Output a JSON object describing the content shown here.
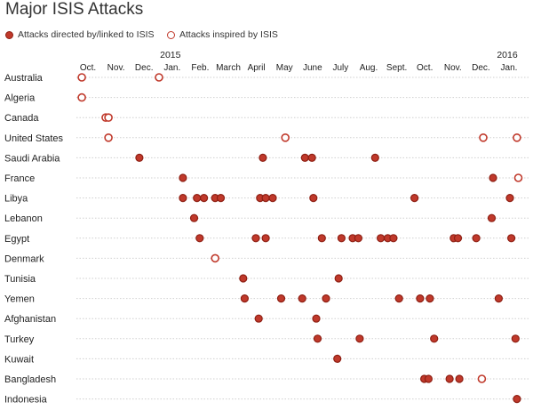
{
  "chart_data": {
    "type": "scatter",
    "title": "Major ISIS Attacks",
    "legend": [
      {
        "key": "directed",
        "label": "Attacks directed by/linked to ISIS",
        "color": "#c0392b",
        "stroke": "#8e1f13"
      },
      {
        "key": "inspired",
        "label": "Attacks inspired by ISIS",
        "color": "#ffffff",
        "stroke": "#c0392b"
      }
    ],
    "year_labels": [
      {
        "label": "2015",
        "month": 3
      },
      {
        "label": "2016",
        "month": 15
      }
    ],
    "months": [
      "Oct.",
      "Nov.",
      "Dec.",
      "Jan.",
      "Feb.",
      "March",
      "April",
      "May",
      "June",
      "July",
      "Aug.",
      "Sept.",
      "Oct.",
      "Nov.",
      "Dec.",
      "Jan."
    ],
    "countries": [
      "Australia",
      "Algeria",
      "Canada",
      "United States",
      "Saudi Arabia",
      "France",
      "Libya",
      "Lebanon",
      "Egypt",
      "Denmark",
      "Tunisia",
      "Yemen",
      "Afghanistan",
      "Turkey",
      "Kuwait",
      "Bangladesh",
      "Indonesia"
    ],
    "series": [
      {
        "key": "directed",
        "points": [
          {
            "country": "Saudi Arabia",
            "m": 1.8
          },
          {
            "country": "Saudi Arabia",
            "m": 6.2
          },
          {
            "country": "Saudi Arabia",
            "m": 7.7
          },
          {
            "country": "Saudi Arabia",
            "m": 7.95
          },
          {
            "country": "Saudi Arabia",
            "m": 10.2
          },
          {
            "country": "France",
            "m": 3.35
          },
          {
            "country": "France",
            "m": 14.4
          },
          {
            "country": "Libya",
            "m": 3.35
          },
          {
            "country": "Libya",
            "m": 3.85
          },
          {
            "country": "Libya",
            "m": 4.1
          },
          {
            "country": "Libya",
            "m": 4.5
          },
          {
            "country": "Libya",
            "m": 4.7
          },
          {
            "country": "Libya",
            "m": 6.1
          },
          {
            "country": "Libya",
            "m": 6.3
          },
          {
            "country": "Libya",
            "m": 6.55
          },
          {
            "country": "Libya",
            "m": 8.0
          },
          {
            "country": "Libya",
            "m": 11.6
          },
          {
            "country": "Libya",
            "m": 15.0
          },
          {
            "country": "Lebanon",
            "m": 3.75
          },
          {
            "country": "Lebanon",
            "m": 14.35
          },
          {
            "country": "Egypt",
            "m": 3.95
          },
          {
            "country": "Egypt",
            "m": 5.95
          },
          {
            "country": "Egypt",
            "m": 6.3
          },
          {
            "country": "Egypt",
            "m": 8.3
          },
          {
            "country": "Egypt",
            "m": 9.0
          },
          {
            "country": "Egypt",
            "m": 9.4
          },
          {
            "country": "Egypt",
            "m": 9.6
          },
          {
            "country": "Egypt",
            "m": 10.4
          },
          {
            "country": "Egypt",
            "m": 10.65
          },
          {
            "country": "Egypt",
            "m": 10.85
          },
          {
            "country": "Egypt",
            "m": 13.0
          },
          {
            "country": "Egypt",
            "m": 13.15
          },
          {
            "country": "Egypt",
            "m": 13.8
          },
          {
            "country": "Egypt",
            "m": 15.05
          },
          {
            "country": "Tunisia",
            "m": 5.5
          },
          {
            "country": "Tunisia",
            "m": 8.9
          },
          {
            "country": "Yemen",
            "m": 5.55
          },
          {
            "country": "Yemen",
            "m": 6.85
          },
          {
            "country": "Yemen",
            "m": 7.6
          },
          {
            "country": "Yemen",
            "m": 8.45
          },
          {
            "country": "Yemen",
            "m": 11.05
          },
          {
            "country": "Yemen",
            "m": 11.8
          },
          {
            "country": "Yemen",
            "m": 12.15
          },
          {
            "country": "Yemen",
            "m": 14.6
          },
          {
            "country": "Afghanistan",
            "m": 6.05
          },
          {
            "country": "Afghanistan",
            "m": 8.1
          },
          {
            "country": "Turkey",
            "m": 8.15
          },
          {
            "country": "Turkey",
            "m": 9.65
          },
          {
            "country": "Turkey",
            "m": 12.3
          },
          {
            "country": "Turkey",
            "m": 15.2
          },
          {
            "country": "Kuwait",
            "m": 8.85
          },
          {
            "country": "Bangladesh",
            "m": 11.95
          },
          {
            "country": "Bangladesh",
            "m": 12.1
          },
          {
            "country": "Bangladesh",
            "m": 12.85
          },
          {
            "country": "Bangladesh",
            "m": 13.2
          },
          {
            "country": "Indonesia",
            "m": 15.25
          }
        ]
      },
      {
        "key": "inspired",
        "points": [
          {
            "country": "Australia",
            "m": -0.25
          },
          {
            "country": "Australia",
            "m": 2.5
          },
          {
            "country": "Algeria",
            "m": -0.25
          },
          {
            "country": "Canada",
            "m": 0.6
          },
          {
            "country": "Canada",
            "m": 0.7
          },
          {
            "country": "United States",
            "m": 0.7
          },
          {
            "country": "United States",
            "m": 7.0
          },
          {
            "country": "United States",
            "m": 14.05
          },
          {
            "country": "United States",
            "m": 15.25
          },
          {
            "country": "France",
            "m": 15.3
          },
          {
            "country": "Denmark",
            "m": 4.5
          },
          {
            "country": "Bangladesh",
            "m": 14.0
          }
        ]
      }
    ]
  }
}
